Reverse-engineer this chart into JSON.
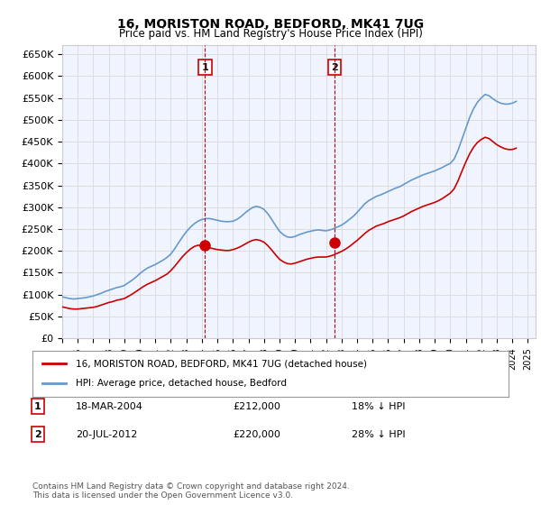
{
  "title": "16, MORISTON ROAD, BEDFORD, MK41 7UG",
  "subtitle": "Price paid vs. HM Land Registry's House Price Index (HPI)",
  "ylabel": "",
  "ylim": [
    0,
    650000
  ],
  "yticks": [
    0,
    50000,
    100000,
    150000,
    200000,
    250000,
    300000,
    350000,
    400000,
    450000,
    500000,
    550000,
    600000,
    650000
  ],
  "xlim_start": 1995.0,
  "xlim_end": 2025.5,
  "line_color_property": "#cc0000",
  "line_color_hpi": "#6699cc",
  "background_color": "#ffffff",
  "grid_color": "#dddddd",
  "plot_bg": "#f0f4ff",
  "legend_label_property": "16, MORISTON ROAD, BEDFORD, MK41 7UG (detached house)",
  "legend_label_hpi": "HPI: Average price, detached house, Bedford",
  "transaction1_label": "1",
  "transaction1_date": "18-MAR-2004",
  "transaction1_price": "£212,000",
  "transaction1_hpi": "18% ↓ HPI",
  "transaction1_year": 2004.2,
  "transaction1_value": 212000,
  "transaction2_label": "2",
  "transaction2_date": "20-JUL-2012",
  "transaction2_price": "£220,000",
  "transaction2_hpi": "28% ↓ HPI",
  "transaction2_year": 2012.55,
  "transaction2_value": 220000,
  "footer": "Contains HM Land Registry data © Crown copyright and database right 2024.\nThis data is licensed under the Open Government Licence v3.0.",
  "hpi_years": [
    1995.0,
    1995.25,
    1995.5,
    1995.75,
    1996.0,
    1996.25,
    1996.5,
    1996.75,
    1997.0,
    1997.25,
    1997.5,
    1997.75,
    1998.0,
    1998.25,
    1998.5,
    1998.75,
    1999.0,
    1999.25,
    1999.5,
    1999.75,
    2000.0,
    2000.25,
    2000.5,
    2000.75,
    2001.0,
    2001.25,
    2001.5,
    2001.75,
    2002.0,
    2002.25,
    2002.5,
    2002.75,
    2003.0,
    2003.25,
    2003.5,
    2003.75,
    2004.0,
    2004.25,
    2004.5,
    2004.75,
    2005.0,
    2005.25,
    2005.5,
    2005.75,
    2006.0,
    2006.25,
    2006.5,
    2006.75,
    2007.0,
    2007.25,
    2007.5,
    2007.75,
    2008.0,
    2008.25,
    2008.5,
    2008.75,
    2009.0,
    2009.25,
    2009.5,
    2009.75,
    2010.0,
    2010.25,
    2010.5,
    2010.75,
    2011.0,
    2011.25,
    2011.5,
    2011.75,
    2012.0,
    2012.25,
    2012.5,
    2012.75,
    2013.0,
    2013.25,
    2013.5,
    2013.75,
    2014.0,
    2014.25,
    2014.5,
    2014.75,
    2015.0,
    2015.25,
    2015.5,
    2015.75,
    2016.0,
    2016.25,
    2016.5,
    2016.75,
    2017.0,
    2017.25,
    2017.5,
    2017.75,
    2018.0,
    2018.25,
    2018.5,
    2018.75,
    2019.0,
    2019.25,
    2019.5,
    2019.75,
    2020.0,
    2020.25,
    2020.5,
    2020.75,
    2021.0,
    2021.25,
    2021.5,
    2021.75,
    2022.0,
    2022.25,
    2022.5,
    2022.75,
    2023.0,
    2023.25,
    2023.5,
    2023.75,
    2024.0,
    2024.25
  ],
  "hpi_values": [
    95000,
    93000,
    91000,
    90000,
    91000,
    92000,
    93000,
    95000,
    97000,
    100000,
    103000,
    107000,
    110000,
    113000,
    116000,
    118000,
    121000,
    127000,
    133000,
    140000,
    148000,
    155000,
    161000,
    165000,
    169000,
    174000,
    179000,
    185000,
    193000,
    205000,
    219000,
    232000,
    244000,
    254000,
    262000,
    268000,
    272000,
    274000,
    274000,
    272000,
    270000,
    268000,
    267000,
    267000,
    268000,
    272000,
    278000,
    286000,
    293000,
    299000,
    302000,
    300000,
    295000,
    285000,
    272000,
    258000,
    245000,
    237000,
    232000,
    231000,
    233000,
    237000,
    240000,
    243000,
    245000,
    247000,
    248000,
    247000,
    246000,
    248000,
    251000,
    255000,
    259000,
    265000,
    272000,
    279000,
    288000,
    298000,
    308000,
    315000,
    320000,
    325000,
    328000,
    332000,
    336000,
    340000,
    344000,
    347000,
    352000,
    357000,
    362000,
    366000,
    370000,
    374000,
    377000,
    380000,
    383000,
    387000,
    391000,
    396000,
    400000,
    410000,
    430000,
    455000,
    480000,
    505000,
    525000,
    540000,
    550000,
    558000,
    555000,
    548000,
    542000,
    538000,
    536000,
    536000,
    538000,
    542000
  ],
  "prop_years": [
    1995.0,
    1995.25,
    1995.5,
    1995.75,
    1996.0,
    1996.25,
    1996.5,
    1996.75,
    1997.0,
    1997.25,
    1997.5,
    1997.75,
    1998.0,
    1998.25,
    1998.5,
    1998.75,
    1999.0,
    1999.25,
    1999.5,
    1999.75,
    2000.0,
    2000.25,
    2000.5,
    2000.75,
    2001.0,
    2001.25,
    2001.5,
    2001.75,
    2002.0,
    2002.25,
    2002.5,
    2002.75,
    2003.0,
    2003.25,
    2003.5,
    2003.75,
    2004.0,
    2004.25,
    2004.5,
    2004.75,
    2005.0,
    2005.25,
    2005.5,
    2005.75,
    2006.0,
    2006.25,
    2006.5,
    2006.75,
    2007.0,
    2007.25,
    2007.5,
    2007.75,
    2008.0,
    2008.25,
    2008.5,
    2008.75,
    2009.0,
    2009.25,
    2009.5,
    2009.75,
    2010.0,
    2010.25,
    2010.5,
    2010.75,
    2011.0,
    2011.25,
    2011.5,
    2011.75,
    2012.0,
    2012.25,
    2012.5,
    2012.75,
    2013.0,
    2013.25,
    2013.5,
    2013.75,
    2014.0,
    2014.25,
    2014.5,
    2014.75,
    2015.0,
    2015.25,
    2015.5,
    2015.75,
    2016.0,
    2016.25,
    2016.5,
    2016.75,
    2017.0,
    2017.25,
    2017.5,
    2017.75,
    2018.0,
    2018.25,
    2018.5,
    2018.75,
    2019.0,
    2019.25,
    2019.5,
    2019.75,
    2020.0,
    2020.25,
    2020.5,
    2020.75,
    2021.0,
    2021.25,
    2021.5,
    2021.75,
    2022.0,
    2022.25,
    2022.5,
    2022.75,
    2023.0,
    2023.25,
    2023.5,
    2023.75,
    2024.0,
    2024.25
  ],
  "prop_values": [
    72000,
    70000,
    68000,
    67000,
    67000,
    68000,
    69000,
    70000,
    71000,
    73000,
    76000,
    79000,
    82000,
    84000,
    87000,
    89000,
    91000,
    96000,
    101000,
    107000,
    113000,
    119000,
    124000,
    128000,
    132000,
    137000,
    142000,
    147000,
    155000,
    165000,
    176000,
    187000,
    196000,
    204000,
    210000,
    213000,
    212000,
    210000,
    207000,
    205000,
    203000,
    202000,
    201000,
    201000,
    203000,
    206000,
    210000,
    215000,
    220000,
    224000,
    226000,
    224000,
    220000,
    212000,
    202000,
    191000,
    181000,
    175000,
    171000,
    170000,
    172000,
    175000,
    178000,
    181000,
    183000,
    185000,
    186000,
    186000,
    186000,
    188000,
    191000,
    195000,
    199000,
    204000,
    210000,
    217000,
    224000,
    232000,
    240000,
    247000,
    252000,
    257000,
    260000,
    263000,
    267000,
    270000,
    273000,
    276000,
    280000,
    285000,
    290000,
    294000,
    298000,
    302000,
    305000,
    308000,
    311000,
    315000,
    320000,
    326000,
    332000,
    342000,
    360000,
    382000,
    403000,
    422000,
    437000,
    448000,
    455000,
    460000,
    457000,
    450000,
    443000,
    438000,
    434000,
    432000,
    432000,
    435000
  ]
}
